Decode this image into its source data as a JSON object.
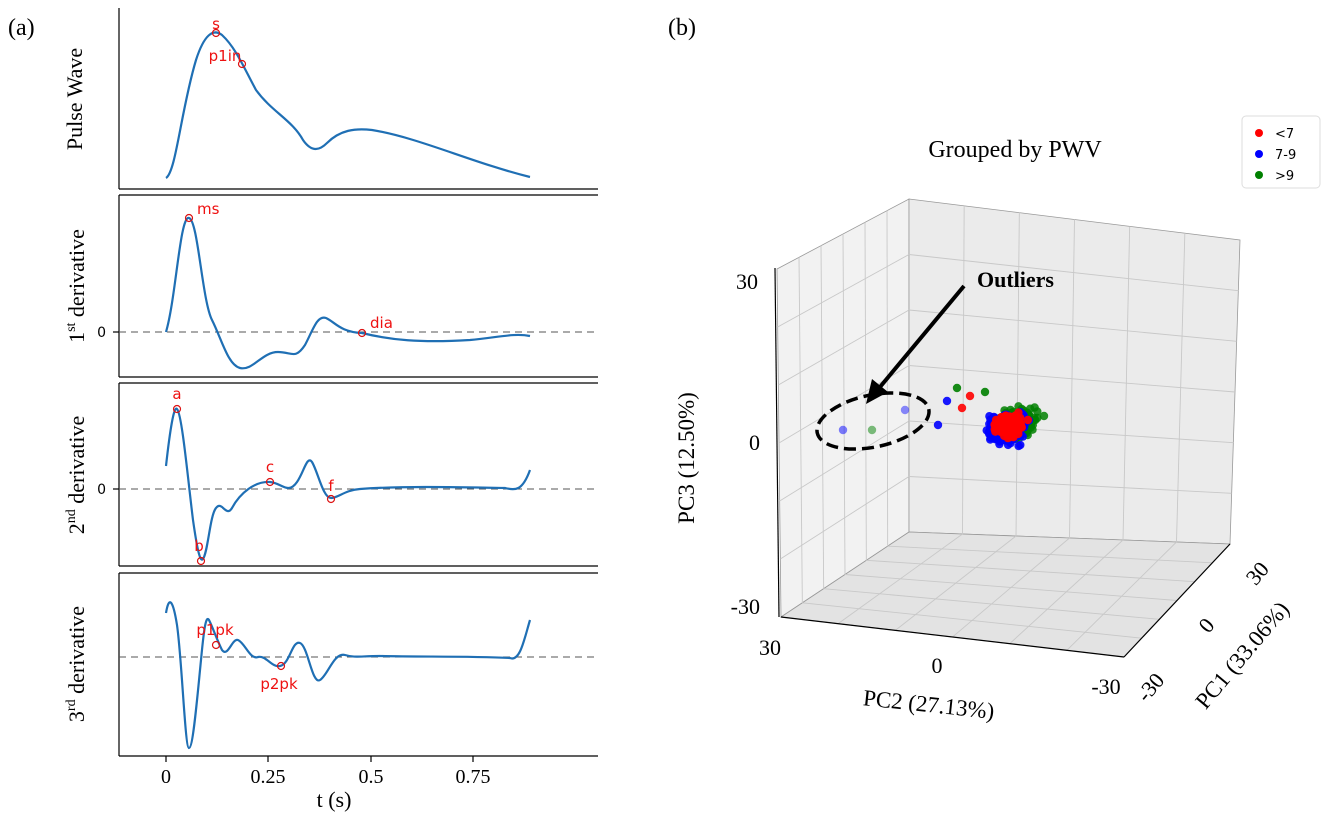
{
  "panel_a": {
    "label": "(a)",
    "xlabel": "t (s)",
    "xticks": [
      "0",
      "0.25",
      "0.5",
      "0.75"
    ],
    "zero_tick": "0",
    "subplots": [
      {
        "title_text": "Pulse Wave",
        "title_sup": "",
        "title_rest": "",
        "show_zero": false,
        "markers": [
          {
            "label": "s",
            "t": 0.11
          },
          {
            "label": "p1in",
            "t": 0.17
          }
        ]
      },
      {
        "title_text": "1",
        "title_sup": "st",
        "title_rest": " derivative",
        "show_zero": true,
        "markers": [
          {
            "label": "ms",
            "t": 0.05
          },
          {
            "label": "dia",
            "t": 0.44
          }
        ]
      },
      {
        "title_text": "2",
        "title_sup": "nd",
        "title_rest": " derivative",
        "show_zero": true,
        "markers": [
          {
            "label": "a",
            "t": 0.025
          },
          {
            "label": "b",
            "t": 0.08
          },
          {
            "label": "c",
            "t": 0.24
          },
          {
            "label": "f",
            "t": 0.37
          }
        ]
      },
      {
        "title_text": "3",
        "title_sup": "rd",
        "title_rest": " derivative",
        "show_zero": false,
        "markers": [
          {
            "label": "p1pk",
            "t": 0.11
          },
          {
            "label": "p2pk",
            "t": 0.26
          }
        ]
      }
    ]
  },
  "panel_b": {
    "label": "(b)",
    "title": "Grouped by PWV",
    "annotation": "Outliers",
    "xlabel": "PC2 (27.13%)",
    "ylabel": "PC1 (33.06%)",
    "zlabel": "PC3 (12.50%)",
    "pc2_ticks": [
      "30",
      "0",
      "-30"
    ],
    "pc1_ticks": [
      "-30",
      "0",
      "30"
    ],
    "pc3_ticks": [
      "30",
      "0",
      "-30"
    ],
    "legend": [
      {
        "label": "<7",
        "color": "#ff0000"
      },
      {
        "label": "7-9",
        "color": "#0000ff"
      },
      {
        "label": ">9",
        "color": "#008000"
      }
    ]
  },
  "chart_data": [
    {
      "type": "line",
      "title": "Pulse Wave",
      "xlabel": "t (s)",
      "x_range": [
        0,
        0.82
      ],
      "xlim": [
        -0.11,
        0.97
      ],
      "series": [
        {
          "values_t": [
            0,
            0.02,
            0.05,
            0.08,
            0.11,
            0.14,
            0.17,
            0.22,
            0.27,
            0.33,
            0.37,
            0.45,
            0.55,
            0.65,
            0.75,
            0.82
          ],
          "values": [
            0.05,
            0.22,
            0.72,
            0.93,
            0.97,
            0.92,
            0.82,
            0.62,
            0.45,
            0.22,
            0.3,
            0.35,
            0.28,
            0.17,
            0.08,
            0.05
          ]
        }
      ],
      "annotations": [
        {
          "label": "s",
          "t": 0.11
        },
        {
          "label": "p1in",
          "t": 0.17
        }
      ]
    },
    {
      "type": "line",
      "title": "1st derivative",
      "xlabel": "t (s)",
      "series": [
        {
          "values_t": [
            0,
            0.03,
            0.05,
            0.08,
            0.1,
            0.13,
            0.16,
            0.2,
            0.25,
            0.29,
            0.34,
            0.38,
            0.44,
            0.55,
            0.7,
            0.82
          ],
          "values": [
            0,
            0.62,
            0.8,
            0.5,
            0.05,
            -0.15,
            -0.25,
            -0.2,
            -0.15,
            -0.08,
            0.12,
            0.05,
            0,
            -0.06,
            -0.04,
            0
          ]
        }
      ],
      "annotations": [
        {
          "label": "ms",
          "t": 0.05
        },
        {
          "label": "dia",
          "t": 0.44
        }
      ]
    },
    {
      "type": "line",
      "title": "2nd derivative",
      "xlabel": "t (s)",
      "series": [
        {
          "values_t": [
            0,
            0.025,
            0.05,
            0.08,
            0.1,
            0.14,
            0.18,
            0.24,
            0.29,
            0.33,
            0.37,
            0.45,
            0.6,
            0.75,
            0.82
          ],
          "values": [
            0.15,
            0.55,
            0.1,
            -0.55,
            -0.4,
            -0.12,
            0,
            0.05,
            0,
            0.2,
            -0.08,
            0,
            0.01,
            0,
            0.1
          ]
        }
      ],
      "annotations": [
        {
          "label": "a",
          "t": 0.025
        },
        {
          "label": "b",
          "t": 0.08
        },
        {
          "label": "c",
          "t": 0.24
        },
        {
          "label": "f",
          "t": 0.37
        }
      ]
    },
    {
      "type": "line",
      "title": "3rd derivative",
      "xlabel": "t (s)",
      "series": [
        {
          "values_t": [
            0,
            0.01,
            0.03,
            0.05,
            0.08,
            0.11,
            0.14,
            0.2,
            0.26,
            0.31,
            0.35,
            0.45,
            0.6,
            0.8,
            0.82
          ],
          "values": [
            0.3,
            0.35,
            0.1,
            -0.6,
            0.25,
            0.05,
            0.1,
            0,
            -0.06,
            0.1,
            -0.15,
            0,
            0,
            0,
            0.25
          ]
        }
      ],
      "annotations": [
        {
          "label": "p1pk",
          "t": 0.11
        },
        {
          "label": "p2pk",
          "t": 0.26
        }
      ]
    },
    {
      "type": "scatter",
      "title": "Grouped by PWV",
      "xlabel": "PC2 (27.13%)",
      "ylabel": "PC1 (33.06%)",
      "zlabel": "PC3 (12.50%)",
      "pc2_range": [
        -30,
        30
      ],
      "pc1_range": [
        -30,
        30
      ],
      "pc3_range": [
        -30,
        30
      ],
      "series": [
        {
          "name": "<7",
          "color": "#ff0000"
        },
        {
          "name": "7-9",
          "color": "#0000ff"
        },
        {
          "name": ">9",
          "color": "#008000"
        }
      ]
    }
  ]
}
